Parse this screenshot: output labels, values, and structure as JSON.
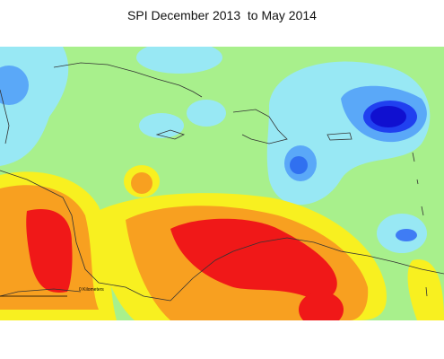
{
  "title": "SPI December 2013  to May 2014",
  "scale_label": "0 Kilometers"
}
